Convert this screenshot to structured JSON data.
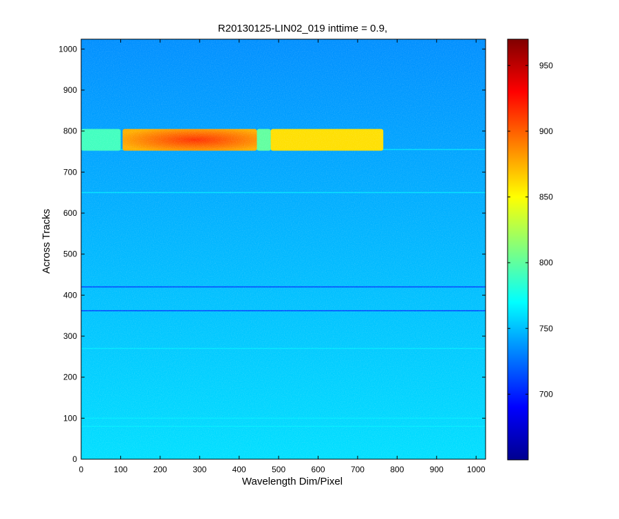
{
  "chart_data": {
    "type": "heatmap",
    "title": "R20130125-LIN02_019 inttime = 0.9,",
    "xlabel": "Wavelength Dim/Pixel",
    "ylabel": "Across Tracks",
    "xlim": [
      0,
      1024
    ],
    "ylim": [
      0,
      1024
    ],
    "x_ticks": [
      "0",
      "100",
      "200",
      "300",
      "400",
      "500",
      "600",
      "700",
      "800",
      "900",
      "1000"
    ],
    "y_ticks": [
      "0",
      "100",
      "200",
      "300",
      "400",
      "500",
      "600",
      "700",
      "800",
      "900",
      "1000"
    ],
    "colormap": "jet",
    "color_limits": [
      650,
      970
    ],
    "colorbar_ticks": [
      "700",
      "750",
      "800",
      "850",
      "900",
      "950"
    ],
    "background_level": {
      "top": 735,
      "bottom": 760
    },
    "bright_band": {
      "y_range": [
        752,
        805
      ],
      "segments": [
        {
          "x_range": [
            0,
            100
          ],
          "value": 790
        },
        {
          "x_range": [
            105,
            445
          ],
          "value": 895,
          "peak": 915,
          "peak_x": 290
        },
        {
          "x_range": [
            445,
            480
          ],
          "value": 800
        },
        {
          "x_range": [
            480,
            765
          ],
          "value": 860
        }
      ]
    },
    "dark_lines_y": [
      420,
      362
    ],
    "bright_lines_y": [
      755,
      650,
      270,
      100,
      80
    ],
    "grid": false,
    "legend": "colorbar-right"
  }
}
